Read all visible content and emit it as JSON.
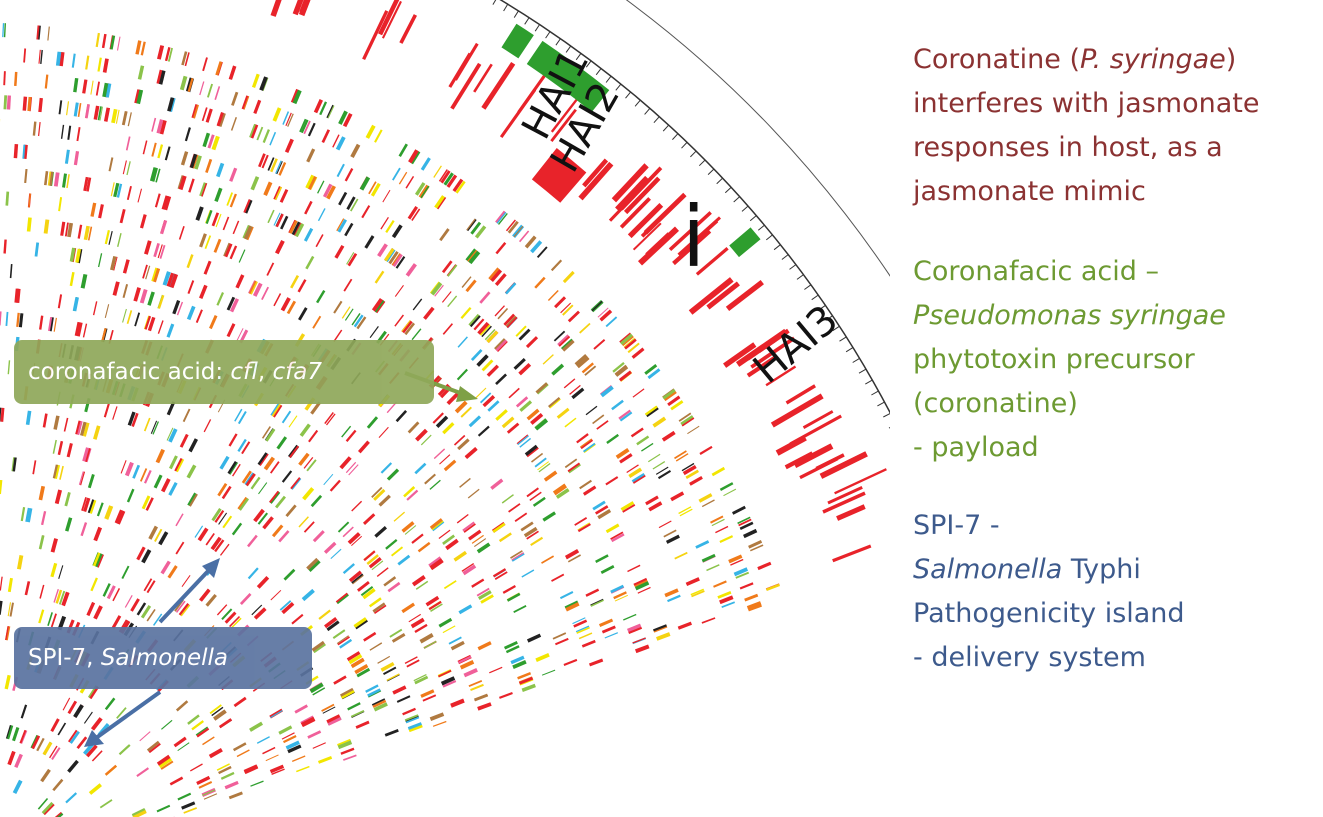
{
  "labels": {
    "hai1": "HAI1",
    "hai2": "HAI2",
    "hai3": "HAI3",
    "i": "i"
  },
  "callouts": {
    "cf_prefix": "coronafacic acid: ",
    "cf_gene1": "cfl",
    "cf_sep": ", ",
    "cf_gene2": "cfa7",
    "spi_prefix": "SPI-7, ",
    "spi_italic": "Salmonella"
  },
  "notes": {
    "coronatine": {
      "line1_a": "Coronatine (",
      "line1_i": "P. syringae",
      "line1_b": ")",
      "line2": "interferes with jasmonate",
      "line3": "responses in host, as a",
      "line4": "jasmonate mimic"
    },
    "coronafacic": {
      "line1": "Coronafacic acid –",
      "line2_i": "Pseudomonas syringae",
      "line3": "phytotoxin precursor",
      "line4": "(coronatine)",
      "line5": "- payload"
    },
    "spi7": {
      "line1": "SPI-7  -",
      "line2_i": "Salmonella",
      "line2_b": " Typhi",
      "line3": "Pathogenicity island",
      "line4": "-    delivery system"
    }
  },
  "colors": {
    "red": "#e8232a",
    "green": "#2e9e2e",
    "coronatine_text": "#8b3232",
    "coronafacic_text": "#6d9a32",
    "spi_text": "#3d5a8c",
    "callout_cf": "#8fa85a",
    "callout_spi": "#5a73a0"
  }
}
